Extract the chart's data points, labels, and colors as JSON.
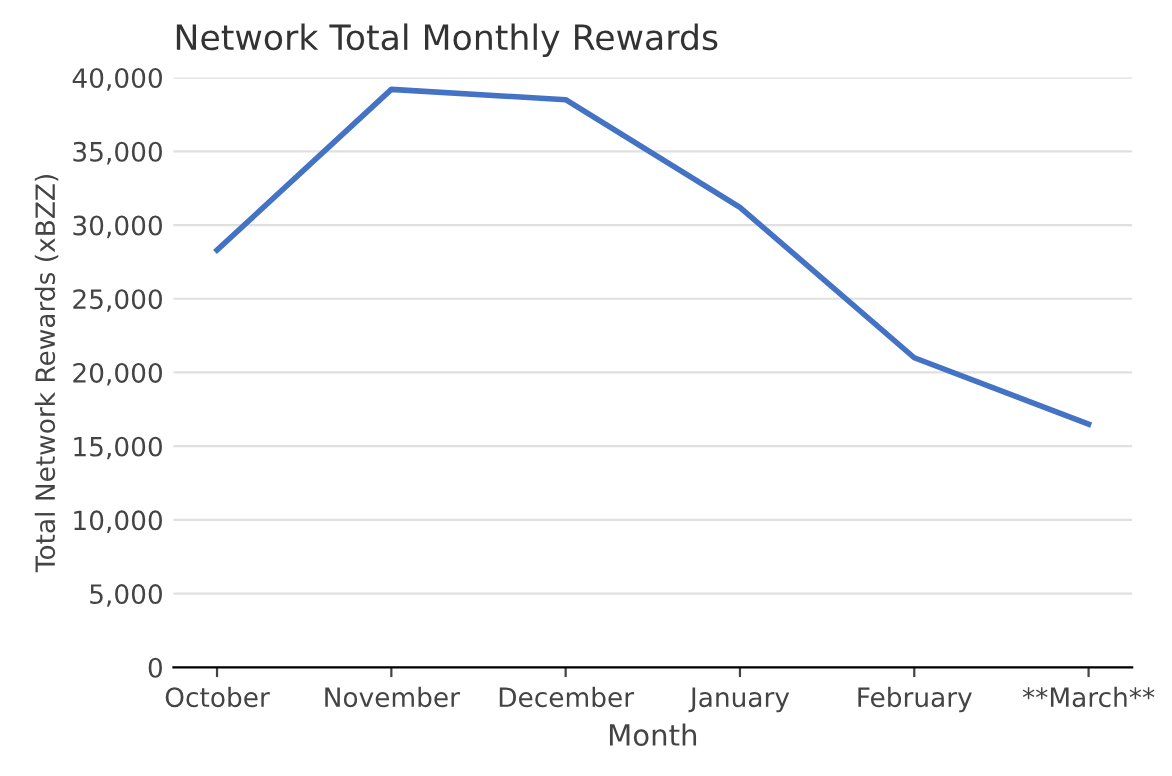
{
  "chart_data": {
    "type": "line",
    "title": "Network Total Monthly Rewards",
    "xlabel": "Month",
    "ylabel": "Total Network Rewards (xBZZ)",
    "categories": [
      "October",
      "November",
      "December",
      "January",
      "February",
      "**March**"
    ],
    "series": [
      {
        "color": "#4472c4",
        "values": [
          28300,
          39200,
          38500,
          31200,
          21000,
          16500
        ]
      }
    ],
    "ylim": [
      0,
      40000
    ],
    "yticks": [
      {
        "value": 0,
        "label": "0"
      },
      {
        "value": 5000,
        "label": "5,000"
      },
      {
        "value": 10000,
        "label": "10,000"
      },
      {
        "value": 15000,
        "label": "15,000"
      },
      {
        "value": 20000,
        "label": "20,000"
      },
      {
        "value": 25000,
        "label": "25,000"
      },
      {
        "value": 30000,
        "label": "30,000"
      },
      {
        "value": 35000,
        "label": "35,000"
      },
      {
        "value": 40000,
        "label": "40,000"
      }
    ],
    "grid": "y",
    "marker": "none",
    "line_style": "solid",
    "legend": false
  }
}
